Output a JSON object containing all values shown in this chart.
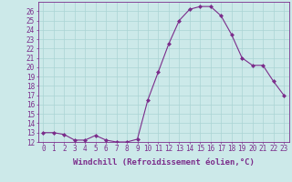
{
  "x": [
    0,
    1,
    2,
    3,
    4,
    5,
    6,
    7,
    8,
    9,
    10,
    11,
    12,
    13,
    14,
    15,
    16,
    17,
    18,
    19,
    20,
    21,
    22,
    23
  ],
  "y": [
    13.0,
    13.0,
    12.8,
    12.2,
    12.2,
    12.7,
    12.2,
    12.0,
    12.0,
    12.3,
    16.5,
    19.5,
    22.5,
    25.0,
    26.2,
    26.5,
    26.5,
    25.5,
    23.5,
    21.0,
    20.2,
    20.2,
    18.5,
    17.0
  ],
  "line_color": "#7b2d8b",
  "marker": "D",
  "marker_size": 2,
  "bg_color": "#cce9e9",
  "grid_color": "#aad4d4",
  "xlabel": "Windchill (Refroidissement éolien,°C)",
  "xlabel_color": "#7b2d8b",
  "tick_color": "#7b2d8b",
  "ylim": [
    12,
    27
  ],
  "yticks": [
    12,
    13,
    14,
    15,
    16,
    17,
    18,
    19,
    20,
    21,
    22,
    23,
    24,
    25,
    26
  ],
  "xticks": [
    0,
    1,
    2,
    3,
    4,
    5,
    6,
    7,
    8,
    9,
    10,
    11,
    12,
    13,
    14,
    15,
    16,
    17,
    18,
    19,
    20,
    21,
    22,
    23
  ],
  "xtick_labels": [
    "0",
    "1",
    "2",
    "3",
    "4",
    "5",
    "6",
    "7",
    "8",
    "9",
    "10",
    "11",
    "12",
    "13",
    "14",
    "15",
    "16",
    "17",
    "18",
    "19",
    "20",
    "21",
    "22",
    "23"
  ],
  "spine_color": "#7b2d8b",
  "font_size": 5.5,
  "xlabel_font_size": 6.5
}
